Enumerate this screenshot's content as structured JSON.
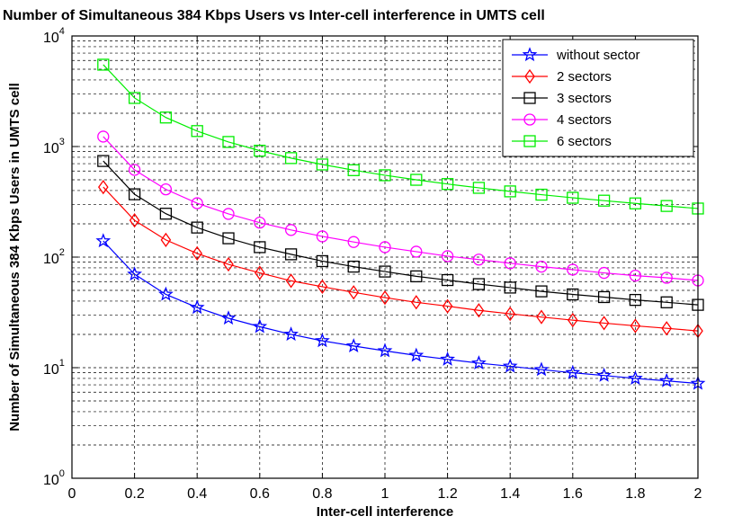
{
  "chart_data": {
    "type": "line",
    "title": "Number of Simultaneous 384 Kbps Users vs Inter-cell interference in UMTS cell",
    "xlabel": "Inter-cell interference",
    "ylabel": "Number of Simultaneous 384 Kbps Users in UMTS cell",
    "x_scale": "linear",
    "y_scale": "log",
    "xlim": [
      0,
      2
    ],
    "ylim": [
      1,
      10000
    ],
    "x_ticks": [
      "0",
      "0.2",
      "0.4",
      "0.6",
      "0.8",
      "1",
      "1.2",
      "1.4",
      "1.6",
      "1.8",
      "2"
    ],
    "x_tick_values": [
      0,
      0.2,
      0.4,
      0.6,
      0.8,
      1,
      1.2,
      1.4,
      1.6,
      1.8,
      2
    ],
    "y_ticks": [
      {
        "base": "10",
        "exp": "0",
        "value": 1
      },
      {
        "base": "10",
        "exp": "1",
        "value": 10
      },
      {
        "base": "10",
        "exp": "2",
        "value": 100
      },
      {
        "base": "10",
        "exp": "3",
        "value": 1000
      },
      {
        "base": "10",
        "exp": "4",
        "value": 10000
      }
    ],
    "grid": true,
    "legend_position": "top-right",
    "x": [
      0.1,
      0.2,
      0.3,
      0.4,
      0.5,
      0.6,
      0.7,
      0.8,
      0.9,
      1.0,
      1.1,
      1.2,
      1.3,
      1.4,
      1.5,
      1.6,
      1.7,
      1.8,
      1.9,
      2.0
    ],
    "series": [
      {
        "name": "without sector",
        "color": "#0000ff",
        "marker": "star",
        "values": [
          140,
          70,
          46,
          35,
          28,
          23.5,
          20,
          17.5,
          15.7,
          14.2,
          12.9,
          11.9,
          11.0,
          10.3,
          9.6,
          9.0,
          8.5,
          8.0,
          7.6,
          7.2
        ]
      },
      {
        "name": "2 sectors",
        "color": "#ff0000",
        "marker": "diamond",
        "values": [
          430,
          215,
          143,
          108,
          86,
          72,
          61,
          54,
          48,
          43,
          39,
          36,
          33,
          30.7,
          28.7,
          26.9,
          25.3,
          23.9,
          22.7,
          21.5
        ]
      },
      {
        "name": "3 sectors",
        "color": "#000000",
        "marker": "square",
        "values": [
          740,
          370,
          247,
          185,
          148,
          123,
          106,
          92,
          82,
          74,
          67,
          62,
          57,
          53,
          49,
          46,
          43.5,
          41,
          39,
          37
        ]
      },
      {
        "name": "4 sectors",
        "color": "#ff00ff",
        "marker": "circle",
        "values": [
          1230,
          615,
          410,
          307,
          246,
          205,
          176,
          154,
          137,
          123,
          112,
          102,
          95,
          88,
          82,
          77,
          72,
          68,
          65,
          61.5
        ]
      },
      {
        "name": "6 sectors",
        "color": "#00ee00",
        "marker": "square",
        "values": [
          5500,
          2750,
          1830,
          1380,
          1100,
          917,
          786,
          688,
          611,
          550,
          500,
          458,
          423,
          393,
          367,
          344,
          324,
          306,
          290,
          275
        ]
      }
    ]
  }
}
